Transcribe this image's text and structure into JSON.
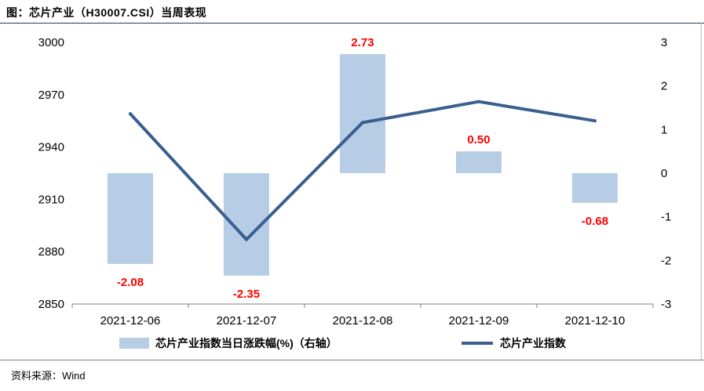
{
  "page": {
    "title": "图：芯片产业（H30007.CSI）当周表现",
    "source": "资料来源：Wind"
  },
  "colors": {
    "bar": "#b7cde6",
    "line": "#3a5f8f",
    "label": "#ff0000"
  },
  "chart_data": {
    "type": "bar",
    "categories": [
      "2021-12-06",
      "2021-12-07",
      "2021-12-08",
      "2021-12-09",
      "2021-12-10"
    ],
    "series": [
      {
        "name": "芯片产业指数当日涨跌幅(%)（右轴）",
        "type": "bar",
        "axis": "right",
        "values": [
          -2.08,
          -2.35,
          2.73,
          0.5,
          -0.68
        ],
        "labels": [
          "-2.08",
          "-2.35",
          "2.73",
          "0.50",
          "-0.68"
        ]
      },
      {
        "name": "芯片产业指数",
        "type": "line",
        "axis": "left",
        "values": [
          2959,
          2887,
          2954,
          2966,
          2955
        ]
      }
    ],
    "left_axis": {
      "min": 2850,
      "max": 3000,
      "ticks": [
        "3000",
        "2970",
        "2940",
        "2910",
        "2880",
        "2850"
      ]
    },
    "right_axis": {
      "min": -3,
      "max": 3,
      "ticks": [
        "3",
        "2",
        "1",
        "0",
        "-1",
        "-2",
        "-3"
      ]
    },
    "legend_position": "bottom",
    "grid": false
  }
}
